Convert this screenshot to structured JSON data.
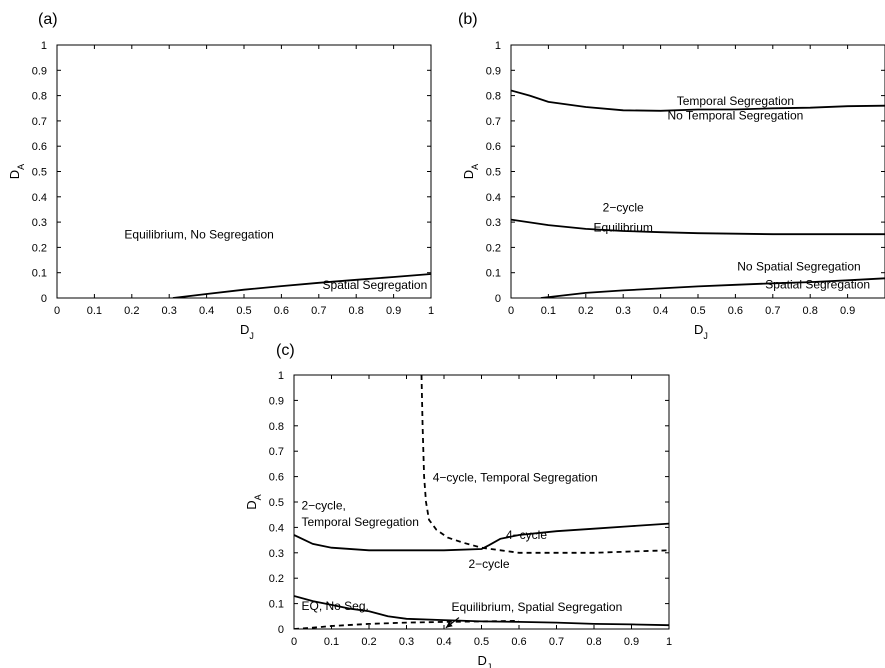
{
  "chart_data": [
    {
      "panel": "(a)",
      "type": "line",
      "xlabel_main": "D",
      "xlabel_sub": "J",
      "ylabel_main": "D",
      "ylabel_sub": "A",
      "xlim": [
        0,
        1
      ],
      "ylim": [
        0,
        1
      ],
      "xticks": [
        "0",
        "0.1",
        "0.2",
        "0.3",
        "0.4",
        "0.5",
        "0.6",
        "0.7",
        "0.8",
        "0.9",
        "1"
      ],
      "yticks": [
        "0",
        "0.1",
        "0.2",
        "0.3",
        "0.4",
        "0.5",
        "0.6",
        "0.7",
        "0.8",
        "0.9",
        "1"
      ],
      "grid": false,
      "series": [
        {
          "style": "solid",
          "x": [
            0.31,
            0.4,
            0.5,
            0.6,
            0.7,
            0.8,
            0.9,
            1.0
          ],
          "y": [
            0.0,
            0.016,
            0.033,
            0.047,
            0.06,
            0.072,
            0.083,
            0.095
          ]
        }
      ],
      "annotations": [
        {
          "text": "Equilibrium, No Segregation",
          "x": 0.38,
          "y": 0.235
        },
        {
          "text": "Spatial Segregation",
          "x": 0.85,
          "y": 0.036
        }
      ]
    },
    {
      "panel": "(b)",
      "type": "line",
      "xlabel_main": "D",
      "xlabel_sub": "J",
      "ylabel_main": "D",
      "ylabel_sub": "A",
      "xlim": [
        0,
        1
      ],
      "ylim": [
        0,
        1
      ],
      "xticks": [
        "0",
        "0.1",
        "0.2",
        "0.3",
        "0.4",
        "0.5",
        "0.6",
        "0.7",
        "0.8",
        "0.9"
      ],
      "yticks": [
        "0",
        "0.1",
        "0.2",
        "0.3",
        "0.4",
        "0.5",
        "0.6",
        "0.7",
        "0.8",
        "0.9",
        "1"
      ],
      "grid": false,
      "series": [
        {
          "style": "solid",
          "x": [
            0.0,
            0.05,
            0.1,
            0.2,
            0.3,
            0.4,
            0.5,
            0.6,
            0.7,
            0.8,
            0.9,
            1.0
          ],
          "y": [
            0.82,
            0.8,
            0.775,
            0.755,
            0.742,
            0.74,
            0.745,
            0.745,
            0.75,
            0.752,
            0.758,
            0.76
          ]
        },
        {
          "style": "solid",
          "x": [
            0.0,
            0.1,
            0.2,
            0.3,
            0.4,
            0.5,
            0.6,
            0.7,
            0.8,
            0.9,
            1.0
          ],
          "y": [
            0.31,
            0.288,
            0.273,
            0.265,
            0.26,
            0.256,
            0.254,
            0.252,
            0.252,
            0.252,
            0.252
          ]
        },
        {
          "style": "solid",
          "x": [
            0.08,
            0.15,
            0.2,
            0.3,
            0.4,
            0.5,
            0.6,
            0.7,
            0.8,
            0.9,
            1.0
          ],
          "y": [
            0.0,
            0.012,
            0.02,
            0.03,
            0.038,
            0.046,
            0.052,
            0.058,
            0.063,
            0.07,
            0.078
          ]
        }
      ],
      "annotations": [
        {
          "text": "Temporal Segregation",
          "x": 0.6,
          "y": 0.762
        },
        {
          "text": "No Temporal Segregation",
          "x": 0.6,
          "y": 0.705
        },
        {
          "text": "2−cycle",
          "x": 0.3,
          "y": 0.342
        },
        {
          "text": "Equilibrium",
          "x": 0.3,
          "y": 0.262
        },
        {
          "text": "No Spatial Segregation",
          "x": 0.77,
          "y": 0.108
        },
        {
          "text": "Spatial Segregation",
          "x": 0.82,
          "y": 0.038
        }
      ]
    },
    {
      "panel": "(c)",
      "type": "line",
      "xlabel_main": "D",
      "xlabel_sub": "J",
      "ylabel_main": "D",
      "ylabel_sub": "A",
      "xlim": [
        0,
        1
      ],
      "ylim": [
        0,
        1
      ],
      "xticks": [
        "0",
        "0.1",
        "0.2",
        "0.3",
        "0.4",
        "0.5",
        "0.6",
        "0.7",
        "0.8",
        "0.9",
        "1"
      ],
      "yticks": [
        "0",
        "0.1",
        "0.2",
        "0.3",
        "0.4",
        "0.5",
        "0.6",
        "0.7",
        "0.8",
        "0.9",
        "1"
      ],
      "grid": false,
      "series": [
        {
          "style": "solid",
          "x": [
            0.0,
            0.05,
            0.1,
            0.2,
            0.3,
            0.4,
            0.5,
            0.52,
            0.55,
            0.6,
            0.7,
            0.8,
            0.9,
            1.0
          ],
          "y": [
            0.37,
            0.335,
            0.32,
            0.31,
            0.31,
            0.31,
            0.315,
            0.33,
            0.355,
            0.37,
            0.385,
            0.395,
            0.405,
            0.415
          ]
        },
        {
          "style": "dashed",
          "x": [
            0.34,
            0.343,
            0.347,
            0.352,
            0.36,
            0.38,
            0.41,
            0.45,
            0.5,
            0.6,
            0.7,
            0.8,
            0.9,
            1.0
          ],
          "y": [
            1.0,
            0.8,
            0.6,
            0.5,
            0.43,
            0.39,
            0.36,
            0.34,
            0.32,
            0.3,
            0.3,
            0.3,
            0.305,
            0.31
          ]
        },
        {
          "style": "solid",
          "x": [
            0.0,
            0.05,
            0.1,
            0.15,
            0.2,
            0.25,
            0.3,
            0.4,
            0.5,
            0.6,
            0.7,
            0.8,
            0.9,
            1.0
          ],
          "y": [
            0.13,
            0.11,
            0.095,
            0.08,
            0.07,
            0.05,
            0.04,
            0.035,
            0.03,
            0.028,
            0.025,
            0.02,
            0.018,
            0.015
          ]
        },
        {
          "style": "dashed",
          "x": [
            0.0,
            0.05,
            0.1,
            0.2,
            0.3,
            0.4,
            0.5,
            0.6
          ],
          "y": [
            0.0,
            0.005,
            0.012,
            0.02,
            0.025,
            0.028,
            0.03,
            0.032
          ]
        }
      ],
      "annotations": [
        {
          "text": "4−cycle, Temporal Segregation",
          "x": 0.37,
          "y": 0.58,
          "anchor": "start"
        },
        {
          "text": "2−cycle,",
          "x": 0.02,
          "y": 0.47,
          "anchor": "start"
        },
        {
          "text": "Temporal Segregation",
          "x": 0.02,
          "y": 0.405,
          "anchor": "start"
        },
        {
          "text": "4−cycle",
          "x": 0.62,
          "y": 0.355
        },
        {
          "text": "2−cycle",
          "x": 0.52,
          "y": 0.24
        },
        {
          "text": "EQ, No Seg.",
          "x": 0.02,
          "y": 0.075,
          "anchor": "start"
        },
        {
          "text": "Equilibrium, Spatial Segregation",
          "x": 0.42,
          "y": 0.07,
          "anchor": "start"
        }
      ],
      "arrow": {
        "from": [
          0.44,
          0.045
        ],
        "to": [
          0.405,
          0.005
        ]
      }
    }
  ]
}
